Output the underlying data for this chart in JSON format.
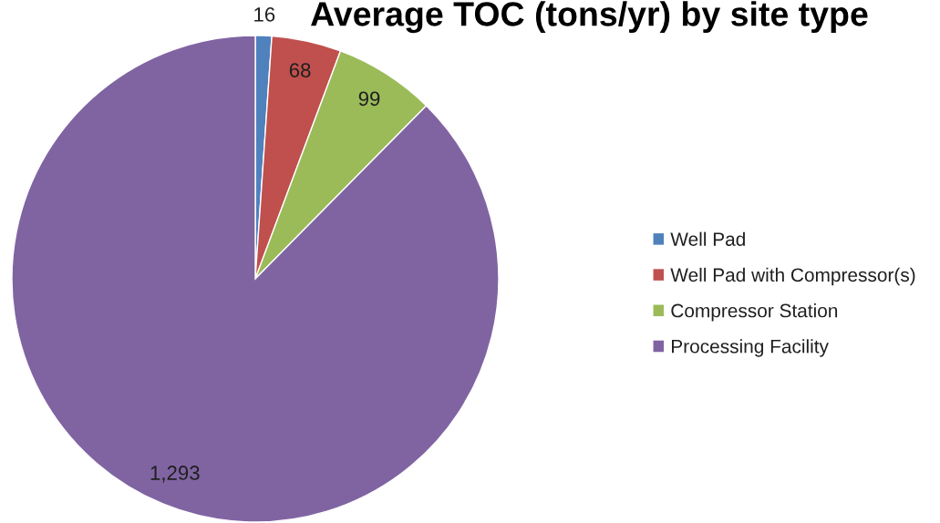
{
  "chart_data": {
    "type": "pie",
    "title": "Average TOC (tons/yr) by site type",
    "categories": [
      "Well Pad",
      "Well Pad with Compressor(s)",
      "Compressor Station",
      "Processing Facility"
    ],
    "values": [
      16,
      68,
      99,
      1293
    ],
    "colors": [
      "#4f81bd",
      "#c0504d",
      "#9bbb59",
      "#8064a2"
    ],
    "value_labels": [
      "16",
      "68",
      "99",
      "1,293"
    ],
    "legend": "right"
  }
}
